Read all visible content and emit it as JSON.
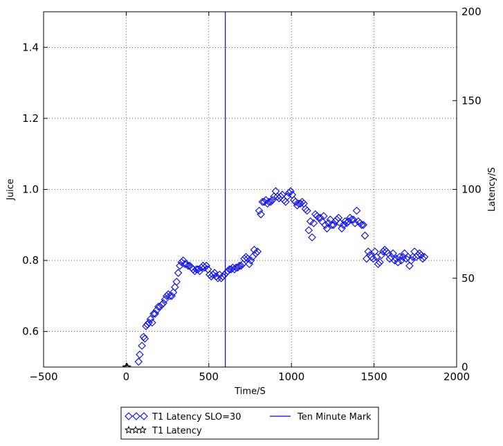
{
  "colors": {
    "series_blue": "#0000ff",
    "star_black": "#000000",
    "grid": "#000000"
  },
  "chart_data": {
    "type": "scatter",
    "xlabel": "Time/S",
    "ylabel_left": "Juice",
    "ylabel_right": "Latency/S",
    "xlim": [
      -500,
      2000
    ],
    "ylim_left": [
      0.5,
      1.5
    ],
    "ylim_right": [
      0,
      200
    ],
    "x_ticks": [
      -500,
      0,
      500,
      1000,
      1500,
      2000
    ],
    "x_tick_labels": [
      "−500",
      "0",
      "500",
      "1000",
      "1500",
      "2000"
    ],
    "y_left_ticks": [
      0.6,
      0.8,
      1.0,
      1.2,
      1.4
    ],
    "y_left_tick_labels": [
      "0.6",
      "0.8",
      "1.0",
      "1.2",
      "1.4"
    ],
    "y_right_ticks": [
      0,
      50,
      100,
      150,
      200
    ],
    "y_right_tick_labels": [
      "0",
      "50",
      "100",
      "150",
      "200"
    ],
    "grid": true,
    "legend": {
      "placement": "below",
      "entries": [
        {
          "label": "T1 Latency SLO=30",
          "marker": "diamond",
          "color": "#0000ff"
        },
        {
          "label": "Ten Minute Mark",
          "marker": "line",
          "color": "#0000ff"
        },
        {
          "label": "T1 Latency",
          "marker": "star",
          "color": "#000000"
        }
      ]
    },
    "vline": {
      "name": "Ten Minute Mark",
      "x": 600
    },
    "series": [
      {
        "name": "T1 Latency SLO=30",
        "axis": "right",
        "marker": "diamond",
        "points": [
          [
            75,
            3
          ],
          [
            82,
            7
          ],
          [
            95,
            12
          ],
          [
            105,
            17
          ],
          [
            113,
            16
          ],
          [
            120,
            23
          ],
          [
            128,
            24
          ],
          [
            137,
            25
          ],
          [
            147,
            27
          ],
          [
            157,
            25
          ],
          [
            166,
            30
          ],
          [
            175,
            30
          ],
          [
            185,
            32
          ],
          [
            195,
            34
          ],
          [
            205,
            34
          ],
          [
            215,
            35
          ],
          [
            225,
            36
          ],
          [
            235,
            38
          ],
          [
            245,
            40
          ],
          [
            255,
            41
          ],
          [
            265,
            40
          ],
          [
            275,
            40
          ],
          [
            285,
            42
          ],
          [
            295,
            45
          ],
          [
            305,
            48
          ],
          [
            315,
            53
          ],
          [
            325,
            57
          ],
          [
            335,
            59
          ],
          [
            345,
            60
          ],
          [
            355,
            58
          ],
          [
            365,
            58
          ],
          [
            375,
            57
          ],
          [
            385,
            57
          ],
          [
            395,
            56
          ],
          [
            405,
            55
          ],
          [
            415,
            54
          ],
          [
            425,
            55
          ],
          [
            435,
            55
          ],
          [
            445,
            54
          ],
          [
            455,
            56
          ],
          [
            465,
            57
          ],
          [
            475,
            56
          ],
          [
            485,
            57
          ],
          [
            495,
            55
          ],
          [
            505,
            52
          ],
          [
            515,
            51
          ],
          [
            525,
            52
          ],
          [
            535,
            53
          ],
          [
            545,
            51
          ],
          [
            555,
            50
          ],
          [
            565,
            52
          ],
          [
            575,
            50
          ],
          [
            585,
            51
          ],
          [
            595,
            52
          ],
          [
            605,
            53
          ],
          [
            615,
            54
          ],
          [
            625,
            55
          ],
          [
            635,
            55
          ],
          [
            645,
            56
          ],
          [
            655,
            55
          ],
          [
            665,
            56
          ],
          [
            675,
            56
          ],
          [
            685,
            57
          ],
          [
            695,
            57
          ],
          [
            705,
            58
          ],
          [
            715,
            61
          ],
          [
            725,
            62
          ],
          [
            735,
            61
          ],
          [
            745,
            58
          ],
          [
            755,
            60
          ],
          [
            765,
            62
          ],
          [
            775,
            66
          ],
          [
            785,
            64
          ],
          [
            795,
            65
          ],
          [
            805,
            88
          ],
          [
            815,
            86
          ],
          [
            825,
            93
          ],
          [
            835,
            93
          ],
          [
            845,
            94
          ],
          [
            855,
            92
          ],
          [
            865,
            93
          ],
          [
            875,
            93
          ],
          [
            885,
            94
          ],
          [
            895,
            96
          ],
          [
            905,
            99
          ],
          [
            915,
            96
          ],
          [
            925,
            95
          ],
          [
            935,
            96
          ],
          [
            945,
            97
          ],
          [
            955,
            94
          ],
          [
            965,
            93
          ],
          [
            975,
            96
          ],
          [
            985,
            98
          ],
          [
            995,
            99
          ],
          [
            1005,
            97
          ],
          [
            1015,
            94
          ],
          [
            1025,
            93
          ],
          [
            1035,
            91
          ],
          [
            1045,
            92
          ],
          [
            1055,
            92
          ],
          [
            1065,
            93
          ],
          [
            1075,
            92
          ],
          [
            1085,
            89
          ],
          [
            1095,
            88
          ],
          [
            1105,
            77
          ],
          [
            1115,
            82
          ],
          [
            1125,
            73
          ],
          [
            1135,
            81
          ],
          [
            1145,
            86
          ],
          [
            1155,
            85
          ],
          [
            1165,
            84
          ],
          [
            1175,
            84
          ],
          [
            1185,
            82
          ],
          [
            1195,
            85
          ],
          [
            1205,
            80
          ],
          [
            1215,
            78
          ],
          [
            1225,
            81
          ],
          [
            1235,
            83
          ],
          [
            1245,
            80
          ],
          [
            1255,
            80
          ],
          [
            1265,
            82
          ],
          [
            1275,
            83
          ],
          [
            1285,
            84
          ],
          [
            1295,
            81
          ],
          [
            1305,
            78
          ],
          [
            1315,
            80
          ],
          [
            1325,
            82
          ],
          [
            1335,
            81
          ],
          [
            1345,
            82
          ],
          [
            1355,
            84
          ],
          [
            1365,
            83
          ],
          [
            1375,
            83
          ],
          [
            1385,
            81
          ],
          [
            1395,
            88
          ],
          [
            1405,
            82
          ],
          [
            1415,
            81
          ],
          [
            1425,
            80
          ],
          [
            1435,
            80
          ],
          [
            1445,
            74
          ],
          [
            1455,
            61
          ],
          [
            1465,
            65
          ],
          [
            1475,
            63
          ],
          [
            1485,
            62
          ],
          [
            1495,
            61
          ],
          [
            1505,
            65
          ],
          [
            1515,
            62
          ],
          [
            1525,
            58
          ],
          [
            1535,
            59
          ],
          [
            1545,
            63
          ],
          [
            1555,
            65
          ],
          [
            1565,
            66
          ],
          [
            1575,
            65
          ],
          [
            1585,
            64
          ],
          [
            1595,
            61
          ],
          [
            1605,
            62
          ],
          [
            1615,
            64
          ],
          [
            1625,
            60
          ],
          [
            1635,
            61
          ],
          [
            1645,
            59
          ],
          [
            1655,
            62
          ],
          [
            1665,
            60
          ],
          [
            1675,
            62
          ],
          [
            1685,
            64
          ],
          [
            1695,
            61
          ],
          [
            1705,
            62
          ],
          [
            1715,
            57
          ],
          [
            1725,
            60
          ],
          [
            1735,
            62
          ],
          [
            1745,
            65
          ],
          [
            1755,
            62
          ],
          [
            1765,
            63
          ],
          [
            1775,
            64
          ],
          [
            1785,
            63
          ],
          [
            1795,
            61
          ],
          [
            1805,
            62
          ]
        ]
      },
      {
        "name": "T1 Latency",
        "axis": "right",
        "marker": "star",
        "points": [
          [
            0,
            0
          ],
          [
            3,
            0
          ],
          [
            6,
            0
          ]
        ]
      }
    ]
  }
}
